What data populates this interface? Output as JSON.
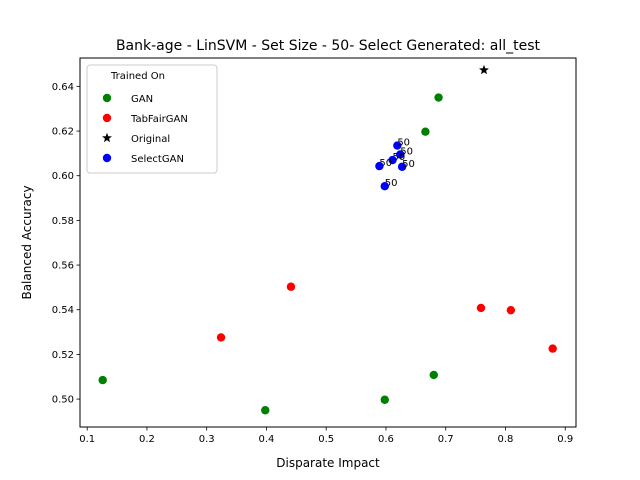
{
  "chart_data": {
    "type": "scatter",
    "title": "Bank-age - LinSVM - Set Size - 50- Select Generated: all_test",
    "xlabel": "Disparate Impact",
    "ylabel": "Balanced Accuracy",
    "xlim": [
      0.088,
      0.918
    ],
    "ylim": [
      0.4875,
      0.6527
    ],
    "xticks": [
      "0.1",
      "0.2",
      "0.3",
      "0.4",
      "0.5",
      "0.6",
      "0.7",
      "0.8",
      "0.9"
    ],
    "yticks": [
      "0.50",
      "0.52",
      "0.54",
      "0.56",
      "0.58",
      "0.60",
      "0.62",
      "0.64"
    ],
    "grid": false,
    "legend": {
      "title": "Trained On",
      "placement": "top-left"
    },
    "series": [
      {
        "name": "GAN",
        "color": "#008000",
        "marker": "circle",
        "points": [
          {
            "x": 0.126,
            "y": 0.5085
          },
          {
            "x": 0.398,
            "y": 0.495
          },
          {
            "x": 0.598,
            "y": 0.4997
          },
          {
            "x": 0.68,
            "y": 0.5108
          },
          {
            "x": 0.666,
            "y": 0.6197
          },
          {
            "x": 0.688,
            "y": 0.635
          }
        ]
      },
      {
        "name": "TabFairGAN",
        "color": "#ff0000",
        "marker": "circle",
        "points": [
          {
            "x": 0.324,
            "y": 0.5276
          },
          {
            "x": 0.441,
            "y": 0.5503
          },
          {
            "x": 0.759,
            "y": 0.5408
          },
          {
            "x": 0.809,
            "y": 0.5398
          },
          {
            "x": 0.879,
            "y": 0.5226
          }
        ]
      },
      {
        "name": "Original",
        "color": "#000000",
        "marker": "star",
        "points": [
          {
            "x": 0.764,
            "y": 0.6473
          }
        ]
      },
      {
        "name": "SelectGAN",
        "color": "#0000ff",
        "marker": "circle",
        "points": [
          {
            "x": 0.619,
            "y": 0.6135,
            "label": "50"
          },
          {
            "x": 0.624,
            "y": 0.6095,
            "label": "50"
          },
          {
            "x": 0.611,
            "y": 0.607,
            "label": "50"
          },
          {
            "x": 0.627,
            "y": 0.604,
            "label": "50"
          },
          {
            "x": 0.589,
            "y": 0.6043,
            "label": "50"
          },
          {
            "x": 0.598,
            "y": 0.5953,
            "label": "50"
          }
        ]
      }
    ]
  }
}
